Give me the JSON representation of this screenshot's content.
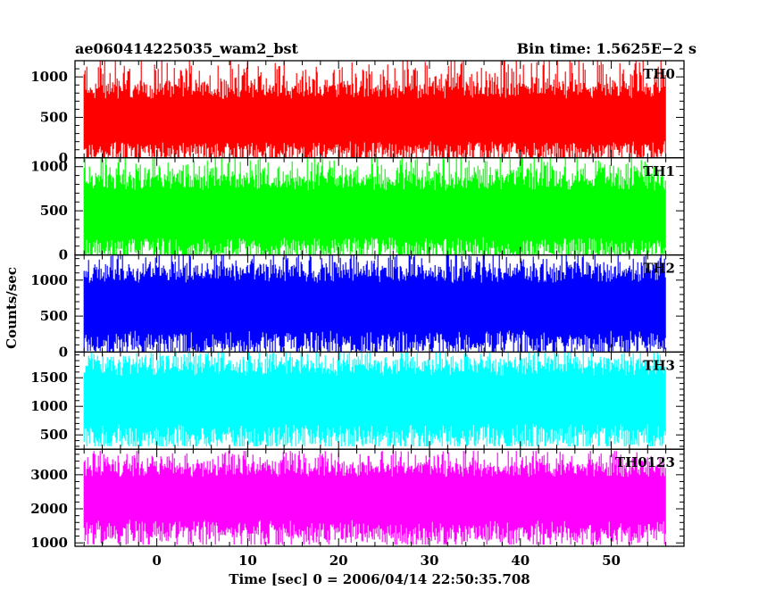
{
  "chart_data": {
    "type": "line",
    "title": "ae060414225035_wam2_bst",
    "subtitle": "Bin time: 1.5625E−2 s",
    "xlabel": "Time [sec] 0 = 2006/04/14 22:50:35.708",
    "ylabel": "Counts/sec",
    "xlim": [
      -9,
      58
    ],
    "x_data_range": [
      -8,
      56
    ],
    "xticks": [
      0,
      10,
      20,
      30,
      40,
      50
    ],
    "xtick_labels": [
      "0",
      "10",
      "20",
      "30",
      "40",
      "50"
    ],
    "grid": false,
    "panels": [
      {
        "name": "TH0",
        "color": "#ff0000",
        "ylim": [
          0,
          1200
        ],
        "yticks": [
          0,
          500,
          1000
        ],
        "ytick_labels": [
          "0",
          "500",
          "1000"
        ],
        "typical_range": [
          80,
          800
        ],
        "min": 0,
        "max": 1200
      },
      {
        "name": "TH1",
        "color": "#00ff00",
        "ylim": [
          0,
          1100
        ],
        "yticks": [
          0,
          500,
          1000
        ],
        "ytick_labels": [
          "0",
          "500",
          "1000"
        ],
        "typical_range": [
          80,
          800
        ],
        "min": 0,
        "max": 1100
      },
      {
        "name": "TH2",
        "color": "#0000ff",
        "ylim": [
          0,
          1350
        ],
        "yticks": [
          0,
          500,
          1000
        ],
        "ytick_labels": [
          "0",
          "500",
          "1000"
        ],
        "typical_range": [
          150,
          1050
        ],
        "min": 0,
        "max": 1350
      },
      {
        "name": "TH3",
        "color": "#00ffff",
        "ylim": [
          250,
          1950
        ],
        "yticks": [
          500,
          1000,
          1500
        ],
        "ytick_labels": [
          "500",
          "1000",
          "1500"
        ],
        "typical_range": [
          500,
          1650
        ],
        "min": 300,
        "max": 1950
      },
      {
        "name": "TH0123",
        "color": "#ff00ff",
        "ylim": [
          900,
          3750
        ],
        "yticks": [
          1000,
          2000,
          3000
        ],
        "ytick_labels": [
          "1000",
          "2000",
          "3000"
        ],
        "typical_range": [
          1400,
          3100
        ],
        "min": 950,
        "max": 3700
      }
    ]
  }
}
